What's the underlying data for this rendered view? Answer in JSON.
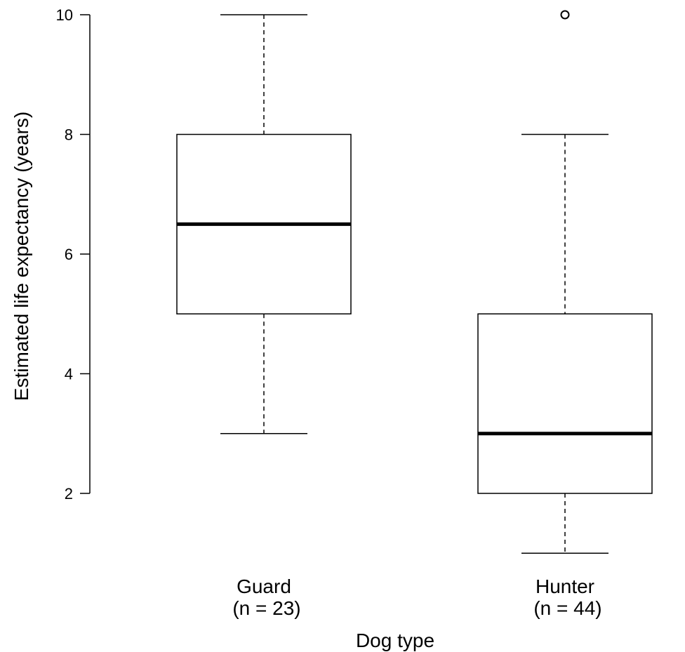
{
  "chart_data": {
    "type": "boxplot",
    "xlabel": "Dog type",
    "ylabel": "Estimated life expectancy (years)",
    "yticks": [
      2,
      4,
      6,
      8,
      10
    ],
    "ylim": [
      1,
      10
    ],
    "grid": false,
    "groups": [
      {
        "name": "Guard",
        "n_label": "(n =  23)",
        "min": 3,
        "q1": 5,
        "median": 6.5,
        "q3": 8,
        "max": 10,
        "outliers": []
      },
      {
        "name": "Hunter",
        "n_label": "(n =  44)",
        "min": 1,
        "q1": 2,
        "median": 3,
        "q3": 5,
        "max": 8,
        "outliers": [
          10
        ]
      }
    ]
  }
}
